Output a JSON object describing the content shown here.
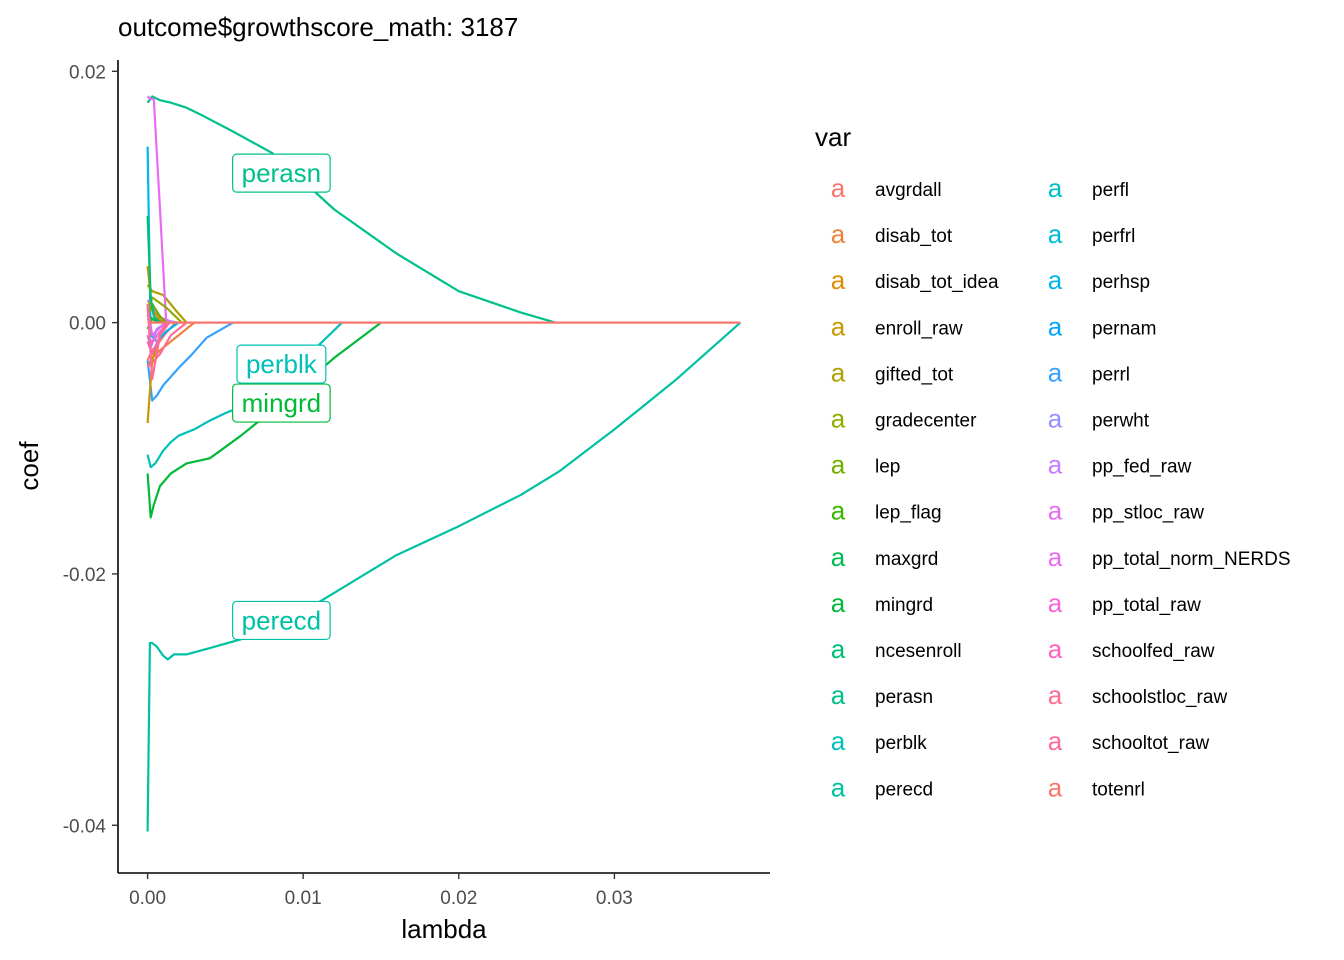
{
  "chart_data": {
    "type": "line",
    "title": "outcome$growthscore_math: 3187",
    "xlabel": "lambda",
    "ylabel": "coef",
    "xlim": [
      -0.0019,
      0.04
    ],
    "ylim": [
      -0.0438,
      0.0209
    ],
    "x_ticks": [
      0.0,
      0.01,
      0.02,
      0.03
    ],
    "x_tick_labels": [
      "0.00",
      "0.01",
      "0.02",
      "0.03"
    ],
    "y_ticks": [
      -0.04,
      -0.02,
      0.0,
      0.02
    ],
    "y_tick_labels": [
      "-0.04",
      "-0.02",
      "0.00",
      "0.02"
    ],
    "legend": {
      "title": "var",
      "key_glyph": "a",
      "placement": "right"
    },
    "series": [
      {
        "name": "avgrdall",
        "color": "#F8766D",
        "x": [
          0,
          0.0003,
          0.0006,
          0.0012,
          0.0018
        ],
        "y": [
          -0.003,
          -0.0022,
          -0.0018,
          -0.0008,
          0
        ]
      },
      {
        "name": "disab_tot",
        "color": "#EC8239",
        "x": [
          0,
          0.0003,
          0.0008,
          0.0016,
          0.0024,
          0.003
        ],
        "y": [
          -0.0035,
          -0.0028,
          -0.0022,
          -0.0014,
          -0.0006,
          0
        ]
      },
      {
        "name": "disab_tot_idea",
        "color": "#DB8E00",
        "x": [
          0,
          0.0003,
          0.0008,
          0.0012
        ],
        "y": [
          0.0045,
          0.001,
          0.0002,
          0
        ]
      },
      {
        "name": "enroll_raw",
        "color": "#C79800",
        "x": [
          0,
          0.0003,
          0.0008,
          0.0012
        ],
        "y": [
          -0.008,
          -0.003,
          -0.001,
          0
        ]
      },
      {
        "name": "gifted_tot",
        "color": "#AFA100",
        "x": [
          0,
          0.0003,
          0.001,
          0.0018,
          0.0025
        ],
        "y": [
          0.003,
          0.0025,
          0.0022,
          0.001,
          0
        ]
      },
      {
        "name": "gradecenter",
        "color": "#93AA00",
        "x": [
          0,
          0.0003,
          0.0012,
          0.0022
        ],
        "y": [
          0.0012,
          0.002,
          0.0012,
          0
        ]
      },
      {
        "name": "lep",
        "color": "#72B000",
        "x": [
          0,
          0.0003,
          0.0008,
          0.0012
        ],
        "y": [
          0.0005,
          0.0015,
          0.0005,
          0
        ]
      },
      {
        "name": "lep_flag",
        "color": "#39B600",
        "x": [
          0,
          0.0003,
          0.0006,
          0.001
        ],
        "y": [
          -0.0005,
          0.0003,
          0.0001,
          0
        ]
      },
      {
        "name": "maxgrd",
        "color": "#00BB4E",
        "x": [
          0,
          0.0002,
          0.0006,
          0.001
        ],
        "y": [
          0.0002,
          0.0004,
          0.0001,
          0
        ]
      },
      {
        "name": "mingrd",
        "color": "#00BA38",
        "x": [
          0,
          0.0002,
          0.0004,
          0.0008,
          0.0015,
          0.0025,
          0.004,
          0.006,
          0.009,
          0.012,
          0.015
        ],
        "y": [
          -0.012,
          -0.0155,
          -0.0145,
          -0.013,
          -0.012,
          -0.0112,
          -0.0108,
          -0.009,
          -0.006,
          -0.0028,
          0
        ]
      },
      {
        "name": "ncesenroll",
        "color": "#00BF74",
        "x": [
          0,
          0.0002,
          0.0004,
          0.0008
        ],
        "y": [
          0.0085,
          0.002,
          0.0005,
          0
        ]
      },
      {
        "name": "perasn",
        "color": "#00C08B",
        "x": [
          0,
          0.0003,
          0.0008,
          0.0015,
          0.0025,
          0.0035,
          0.0055,
          0.008,
          0.012,
          0.016,
          0.02,
          0.024,
          0.0262
        ],
        "y": [
          0.0175,
          0.018,
          0.0177,
          0.0175,
          0.0171,
          0.0165,
          0.0152,
          0.0135,
          0.009,
          0.0055,
          0.0025,
          0.0008,
          0
        ]
      },
      {
        "name": "perblk",
        "color": "#00C0B8",
        "x": [
          0,
          0.0002,
          0.0005,
          0.001,
          0.0015,
          0.002,
          0.003,
          0.004,
          0.005,
          0.007,
          0.009,
          0.011,
          0.0125
        ],
        "y": [
          -0.0105,
          -0.0115,
          -0.0112,
          -0.0102,
          -0.0095,
          -0.009,
          -0.0085,
          -0.0078,
          -0.0072,
          -0.0062,
          -0.0042,
          -0.0018,
          0
        ]
      },
      {
        "name": "perecd",
        "color": "#00C1A3",
        "x": [
          0,
          0.00015,
          0.0003,
          0.0006,
          0.001,
          0.0013,
          0.0017,
          0.002,
          0.0025,
          0.004,
          0.008,
          0.012,
          0.016,
          0.02,
          0.024,
          0.0265,
          0.03,
          0.034,
          0.0381
        ],
        "y": [
          -0.0405,
          -0.0255,
          -0.0255,
          -0.0258,
          -0.0265,
          -0.0268,
          -0.0264,
          -0.0264,
          -0.0264,
          -0.0259,
          -0.0245,
          -0.0215,
          -0.0185,
          -0.0162,
          -0.0137,
          -0.0118,
          -0.0085,
          -0.0045,
          0
        ]
      },
      {
        "name": "perfl",
        "color": "#00BFC4",
        "x": [
          0.0381
        ],
        "y": [
          0
        ]
      },
      {
        "name": "perfrl",
        "color": "#00BCD8",
        "x": [
          0.0381
        ],
        "y": [
          0
        ]
      },
      {
        "name": "perhsp",
        "color": "#00B6EB",
        "x": [
          0,
          0.0002,
          0.0006,
          0.0012,
          0.002
        ],
        "y": [
          0.014,
          -0.001,
          -0.0015,
          -0.0007,
          0
        ]
      },
      {
        "name": "pernam",
        "color": "#06A4FF",
        "x": [
          0.0381
        ],
        "y": [
          0
        ]
      },
      {
        "name": "perrl",
        "color": "#35A2FF",
        "x": [
          0,
          0.0003,
          0.0006,
          0.001,
          0.0015,
          0.002,
          0.0028,
          0.0038,
          0.0055
        ],
        "y": [
          -0.003,
          -0.0062,
          -0.0058,
          -0.005,
          -0.0043,
          -0.0036,
          -0.0026,
          -0.0012,
          0
        ]
      },
      {
        "name": "perwht",
        "color": "#9590FF",
        "x": [
          0,
          0.0002,
          0.0006,
          0.0012
        ],
        "y": [
          -0.001,
          -0.002,
          -0.0005,
          0
        ]
      },
      {
        "name": "pp_fed_raw",
        "color": "#C77CFF",
        "x": [
          0,
          0.0003,
          0.0008,
          0.0015,
          0.002
        ],
        "y": [
          0.0018,
          0.0012,
          0.0004,
          0.0001,
          0
        ]
      },
      {
        "name": "pp_stloc_raw",
        "color": "#E76BF3",
        "x": [
          0,
          0.0003,
          0.0008,
          0.0013
        ],
        "y": [
          0.0012,
          -0.001,
          -0.0004,
          0
        ]
      },
      {
        "name": "pp_total_norm_NERDS",
        "color": "#E76BF3",
        "x": [
          0,
          0.0002,
          0.0004,
          0.0008,
          0.0012
        ],
        "y": [
          0.018,
          0.0178,
          0.0178,
          0.009,
          0
        ]
      },
      {
        "name": "pp_total_raw",
        "color": "#FA62DB",
        "x": [
          0,
          0.0003,
          0.0008,
          0.0014
        ],
        "y": [
          -0.001,
          -0.0016,
          -0.0007,
          0
        ]
      },
      {
        "name": "schoolfed_raw",
        "color": "#FF62BC",
        "x": [
          0,
          0.0003,
          0.0008,
          0.0014
        ],
        "y": [
          -0.0015,
          -0.0025,
          -0.001,
          0
        ]
      },
      {
        "name": "schoolstloc_raw",
        "color": "#FF6C91",
        "x": [
          0,
          0.0003,
          0.0008,
          0.0012
        ],
        "y": [
          0.0015,
          -0.0045,
          -0.001,
          0
        ]
      },
      {
        "name": "schooltot_raw",
        "color": "#FF6A98",
        "x": [
          0,
          0.0003,
          0.0008,
          0.0015,
          0.0025
        ],
        "y": [
          -0.0035,
          -0.0032,
          -0.0025,
          -0.001,
          0
        ]
      },
      {
        "name": "totenrl",
        "color": "#F8766D",
        "x": [
          0,
          0.0381
        ],
        "y": [
          0,
          0
        ]
      }
    ],
    "annotations": [
      {
        "text": "perasn",
        "series": "perasn",
        "x": 0.0086,
        "y": 0.0119
      },
      {
        "text": "perblk",
        "series": "perblk",
        "x": 0.0086,
        "y": -0.0033
      },
      {
        "text": "mingrd",
        "series": "mingrd",
        "x": 0.0086,
        "y": -0.0064
      },
      {
        "text": "perecd",
        "series": "perecd",
        "x": 0.0086,
        "y": -0.0237
      }
    ]
  }
}
